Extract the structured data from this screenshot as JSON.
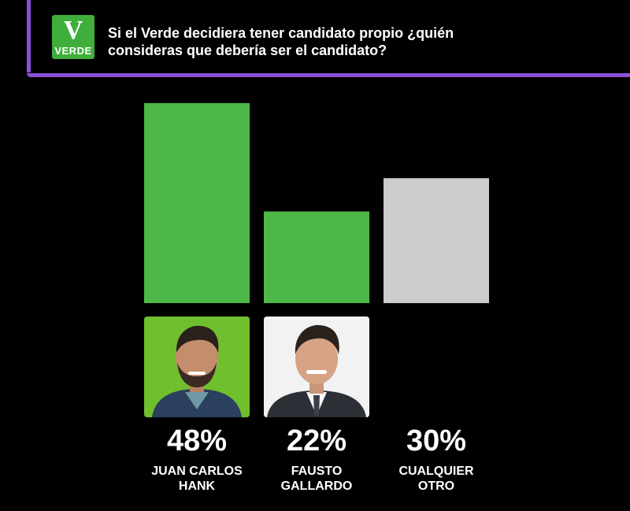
{
  "header": {
    "logo_text": "VERDE",
    "logo_glyph": "V",
    "question_line1": "Si el Verde decidiera tener candidato propio ¿quién",
    "question_line2": "consideras que debería ser el candidato?"
  },
  "colors": {
    "accent": "#8a52d8",
    "green": "#4db848",
    "gray": "#cccccc",
    "photo1_bg": "#6fbf2e",
    "photo2_bg": "#f2f2f2"
  },
  "chart_data": {
    "type": "bar",
    "categories": [
      "JUAN CARLOS HANK",
      "FAUSTO GALLARDO",
      "CUALQUIER OTRO"
    ],
    "values": [
      48,
      22,
      30
    ],
    "value_labels": [
      "48%",
      "22%",
      "30%"
    ],
    "ylim": [
      0,
      48
    ],
    "grid": false
  },
  "candidates": [
    {
      "pct": "48%",
      "name_line1": "JUAN CARLOS",
      "name_line2": "HANK",
      "photo": "photo-juan-carlos-hank"
    },
    {
      "pct": "22%",
      "name_line1": "FAUSTO",
      "name_line2": "GALLARDO",
      "photo": "photo-fausto-gallardo"
    },
    {
      "pct": "30%",
      "name_line1": "CUALQUIER",
      "name_line2": "OTRO"
    }
  ]
}
